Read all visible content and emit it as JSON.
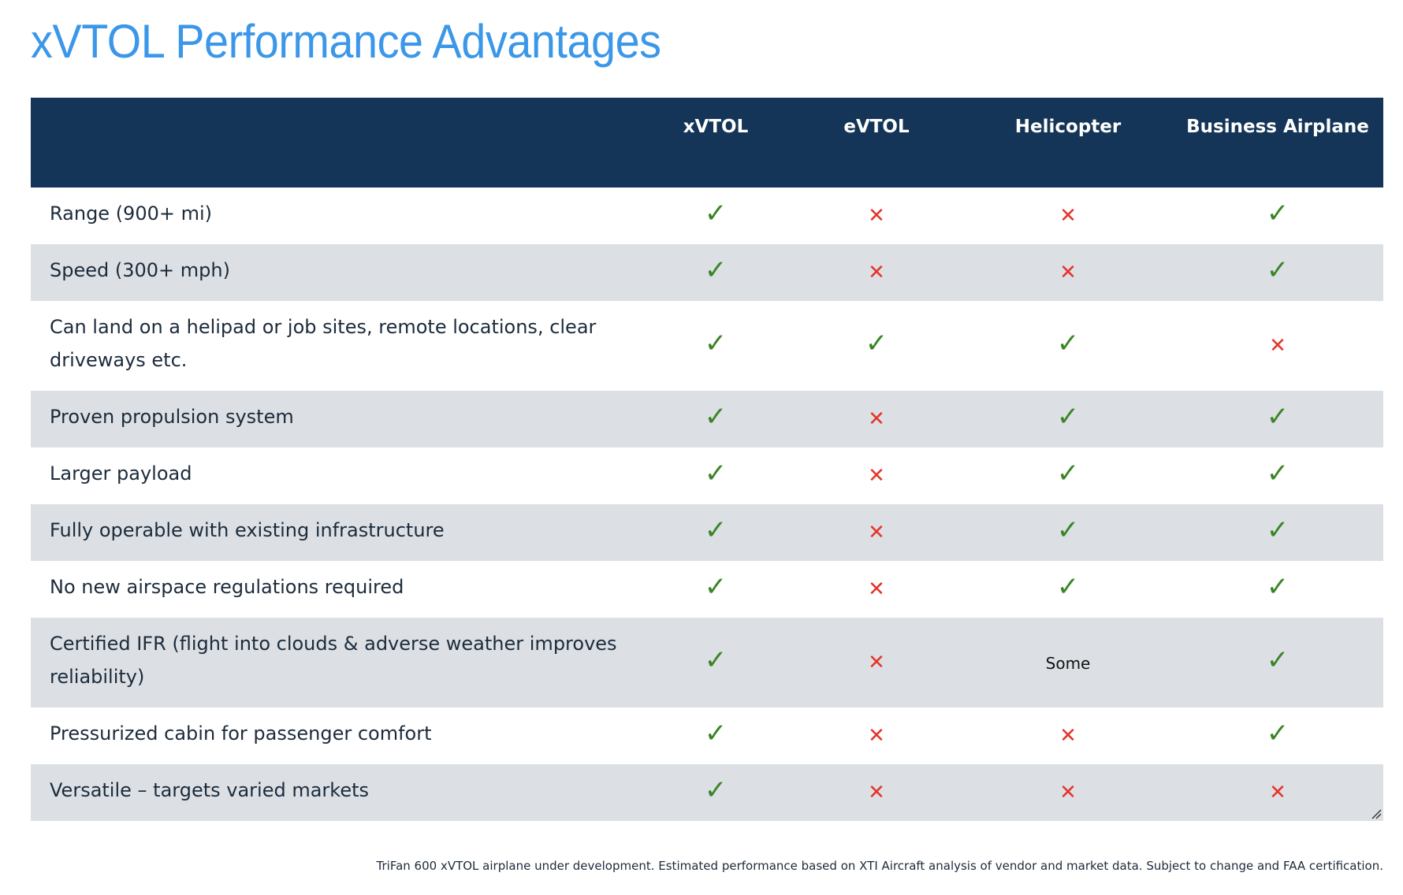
{
  "title": "xVTOL Performance Advantages",
  "colors": {
    "title": "#3b97e8",
    "header_bg": "#143557",
    "row_alt_bg": "#dce0e4",
    "check": "#3a8527",
    "cross": "#e5352b"
  },
  "table": {
    "columns": [
      {
        "label": ""
      },
      {
        "label": "xVTOL"
      },
      {
        "label": "eVTOL"
      },
      {
        "label": "Helicopter"
      },
      {
        "label": "Business Airplane"
      }
    ],
    "symbols": {
      "yes": "✓",
      "no": "✕"
    },
    "rows": [
      {
        "feature": "Range (900+ mi)",
        "values": [
          "yes",
          "no",
          "no",
          "yes"
        ]
      },
      {
        "feature": "Speed (300+ mph)",
        "values": [
          "yes",
          "no",
          "no",
          "yes"
        ]
      },
      {
        "feature": "Can land on a helipad or job sites, remote locations, clear driveways etc.",
        "values": [
          "yes",
          "yes",
          "yes",
          "no"
        ]
      },
      {
        "feature": "Proven propulsion system",
        "values": [
          "yes",
          "no",
          "yes",
          "yes"
        ]
      },
      {
        "feature": "Larger payload",
        "values": [
          "yes",
          "no",
          "yes",
          "yes"
        ]
      },
      {
        "feature": "Fully operable with existing infrastructure",
        "values": [
          "yes",
          "no",
          "yes",
          "yes"
        ]
      },
      {
        "feature": "No new airspace regulations required",
        "values": [
          "yes",
          "no",
          "yes",
          "yes"
        ]
      },
      {
        "feature": "Certified IFR (flight into clouds & adverse weather improves reliability)",
        "values": [
          "yes",
          "no",
          "Some",
          "yes"
        ]
      },
      {
        "feature": "Pressurized cabin for passenger comfort",
        "values": [
          "yes",
          "no",
          "no",
          "yes"
        ]
      },
      {
        "feature": "Versatile – targets varied markets",
        "values": [
          "yes",
          "no",
          "no",
          "no"
        ]
      }
    ]
  },
  "footnote": "TriFan 600 xVTOL airplane under development. Estimated performance based on XTI Aircraft analysis of vendor and market data. Subject to change and FAA certification."
}
